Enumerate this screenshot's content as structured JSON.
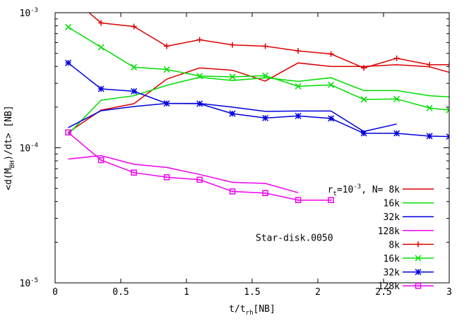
{
  "chart_data": {
    "type": "line",
    "title": "",
    "xlabel": {
      "main": "t/t",
      "sub": "rh",
      "suffix": "[NB]"
    },
    "ylabel": {
      "prefix": "<d(M",
      "sub": "BH",
      "suffix": ")/dt> [NB]"
    },
    "xlim": [
      0,
      3
    ],
    "ylim": [
      1e-05,
      0.001
    ],
    "yscale": "log",
    "grid": false,
    "legend_position": "bottom-right",
    "x_ticks": [
      {
        "value": 0,
        "label": "0"
      },
      {
        "value": 0.5,
        "label": "0.5"
      },
      {
        "value": 1,
        "label": "1"
      },
      {
        "value": 1.5,
        "label": "1.5"
      },
      {
        "value": 2,
        "label": "2"
      },
      {
        "value": 2.5,
        "label": "2.5"
      },
      {
        "value": 3,
        "label": "3"
      }
    ],
    "y_ticks": [
      {
        "value": 0.001,
        "base": "10",
        "exp": "-3"
      },
      {
        "value": 0.0001,
        "base": "10",
        "exp": "-4"
      },
      {
        "value": 1e-05,
        "base": "10",
        "exp": "-5"
      }
    ],
    "legend_header": {
      "r": "r",
      "sub": "t",
      "eq": "=10",
      "exp": "-3",
      "tail": ", N= 8k"
    },
    "legend_annotation": "Star-disk.0050",
    "series": [
      {
        "name": "8k",
        "group": "plain",
        "color": "#dd0000",
        "marker": "none",
        "x": [
          0.1,
          0.35,
          0.6,
          0.85,
          1.1,
          1.35,
          1.6,
          1.85,
          2.1,
          2.35,
          2.6,
          2.85,
          3.0
        ],
        "y": [
          0.00013,
          0.00019,
          0.000212,
          0.000322,
          0.00039,
          0.000375,
          0.000312,
          0.000425,
          0.0004,
          0.0004,
          0.000412,
          0.000398,
          0.000362
        ]
      },
      {
        "name": "16k",
        "group": "plain",
        "color": "#00dd00",
        "marker": "none",
        "x": [
          0.1,
          0.35,
          0.6,
          0.85,
          1.1,
          1.35,
          1.6,
          1.85,
          2.1,
          2.35,
          2.6,
          2.85,
          3.0
        ],
        "y": [
          0.000126,
          0.000225,
          0.000243,
          0.00029,
          0.000333,
          0.000315,
          0.00033,
          0.00031,
          0.00033,
          0.000265,
          0.000265,
          0.000243,
          0.000238
        ]
      },
      {
        "name": "32k",
        "group": "plain",
        "color": "#0000dd",
        "marker": "none",
        "x": [
          0.1,
          0.35,
          0.6,
          0.85,
          1.1,
          1.35,
          1.6,
          1.85,
          2.1,
          2.35,
          2.6
        ],
        "y": [
          0.000141,
          0.000188,
          0.000202,
          0.000213,
          0.000213,
          0.0002,
          0.000186,
          0.000187,
          0.000187,
          0.000132,
          0.00015
        ]
      },
      {
        "name": "128k",
        "group": "plain",
        "color": "#ee00ee",
        "marker": "none",
        "x": [
          0.1,
          0.35,
          0.6,
          0.85,
          1.1,
          1.35,
          1.6,
          1.85
        ],
        "y": [
          8.25e-05,
          8.75e-05,
          7.55e-05,
          7.15e-05,
          6.35e-05,
          5.55e-05,
          5.45e-05,
          4.65e-05
        ]
      },
      {
        "name": "8k",
        "group": "marked",
        "color": "#dd0000",
        "marker": "plus",
        "x": [
          0.1,
          0.35,
          0.6,
          0.85,
          1.1,
          1.35,
          1.6,
          1.85,
          2.1,
          2.35,
          2.6,
          2.85,
          3.0
        ],
        "y": [
          0.00135,
          0.00084,
          0.00079,
          0.000565,
          0.00063,
          0.000578,
          0.000565,
          0.000522,
          0.000495,
          0.00039,
          0.00046,
          0.000412,
          0.000412
        ]
      },
      {
        "name": "16k",
        "group": "marked",
        "color": "#00dd00",
        "marker": "x",
        "x": [
          0.1,
          0.35,
          0.6,
          0.85,
          1.1,
          1.35,
          1.6,
          1.85,
          2.1,
          2.35,
          2.6,
          2.85,
          3.0
        ],
        "y": [
          0.000782,
          0.000555,
          0.000395,
          0.00038,
          0.00034,
          0.000335,
          0.000342,
          0.000285,
          0.000292,
          0.000228,
          0.00023,
          0.000197,
          0.00019
        ]
      },
      {
        "name": "32k",
        "group": "marked",
        "color": "#0000dd",
        "marker": "star",
        "x": [
          0.1,
          0.35,
          0.6,
          0.85,
          1.1,
          1.35,
          1.6,
          1.85,
          2.1,
          2.35,
          2.6,
          2.85,
          3.0
        ],
        "y": [
          0.000425,
          0.000273,
          0.000262,
          0.000213,
          0.000212,
          0.000179,
          0.000166,
          0.000172,
          0.000165,
          0.000128,
          0.000128,
          0.000122,
          0.000121
        ]
      },
      {
        "name": "128k",
        "group": "marked",
        "color": "#ee00ee",
        "marker": "square",
        "x": [
          0.1,
          0.35,
          0.6,
          0.85,
          1.1,
          1.35,
          1.6,
          1.85,
          2.1
        ],
        "y": [
          0.00013,
          8.1e-05,
          6.55e-05,
          6.05e-05,
          5.8e-05,
          4.75e-05,
          4.62e-05,
          4.1e-05,
          4.1e-05
        ]
      }
    ]
  }
}
